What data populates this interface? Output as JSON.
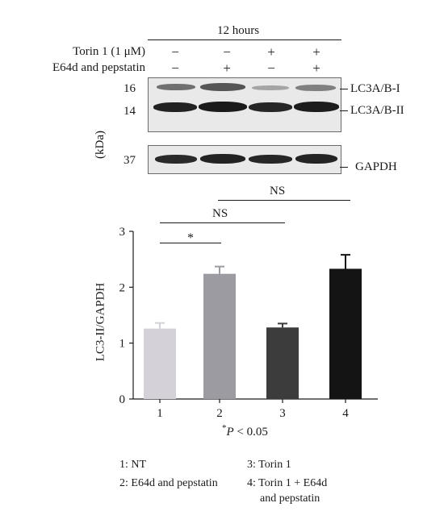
{
  "blot": {
    "time_label": "12 hours",
    "row1_label": "Torin 1 (1 μM)",
    "row2_label": "E64d and pepstatin",
    "row1_signs": [
      "−",
      "−",
      "+",
      "+"
    ],
    "row2_signs": [
      "−",
      "+",
      "−",
      "+"
    ],
    "mw_markers": [
      "16",
      "14",
      "37"
    ],
    "unit_label": "(kDa)",
    "band_labels": [
      "LC3A/B-I",
      "LC3A/B-II",
      "GAPDH"
    ]
  },
  "significance": {
    "ns_top": "NS",
    "ns_mid": "NS",
    "star": "*"
  },
  "chart_data": {
    "type": "bar",
    "categories": [
      "1",
      "2",
      "3",
      "4"
    ],
    "values": [
      1.26,
      2.24,
      1.28,
      2.33
    ],
    "errors": [
      0.1,
      0.13,
      0.07,
      0.25
    ],
    "colors": [
      "#d4d2d8",
      "#9c9ba2",
      "#3c3c3c",
      "#141414"
    ],
    "ylabel": "LC3-II/GAPDH",
    "ylim": [
      0,
      3
    ],
    "yticks": [
      "0",
      "1",
      "2",
      "3"
    ],
    "footnote_star": "*",
    "footnote_p": "P",
    "footnote_rest": " < 0.05"
  },
  "legend": {
    "items": [
      "1: NT",
      "2: E64d and pepstatin",
      "3: Torin 1",
      "4: Torin 1 + E64d",
      "and pepstatin"
    ]
  }
}
